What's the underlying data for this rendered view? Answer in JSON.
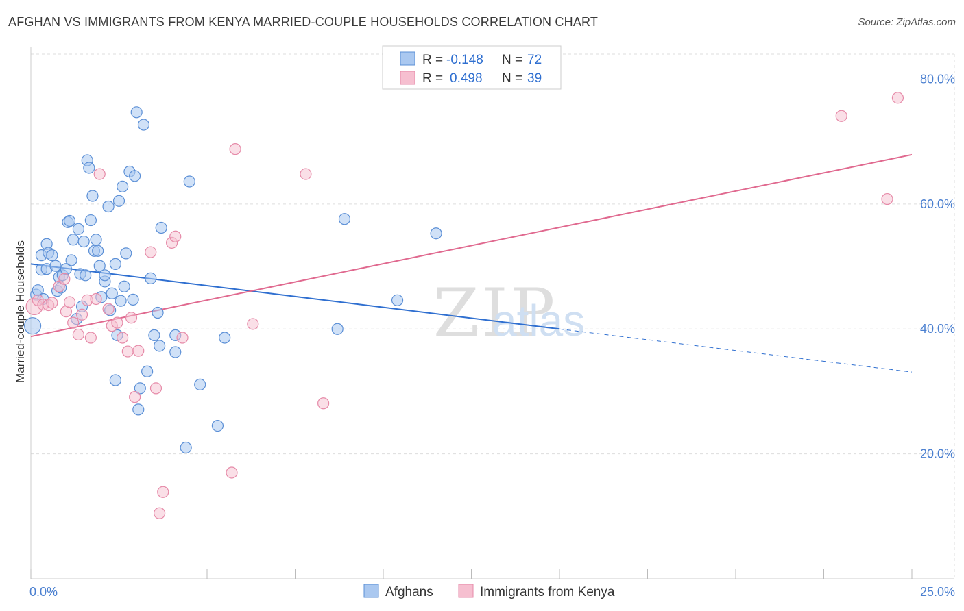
{
  "title": "AFGHAN VS IMMIGRANTS FROM KENYA MARRIED-COUPLE HOUSEHOLDS CORRELATION CHART",
  "source": "Source: ZipAtlas.com",
  "watermark": {
    "zip": "ZIP",
    "atlas": "atlas"
  },
  "colors": {
    "blue_fill": "#aac8f0",
    "blue_stroke": "#5b8fd6",
    "blue_line": "#2f6fd0",
    "pink_fill": "#f6bfd0",
    "pink_stroke": "#e68aa8",
    "pink_line": "#e0698f",
    "tick_text": "#4a7fd0",
    "grid": "#dddddd"
  },
  "legend": {
    "r_label": "R =",
    "n_label": "N =",
    "series": [
      {
        "r": "-0.148",
        "n": "72"
      },
      {
        "r": "0.498",
        "n": "39"
      }
    ]
  },
  "chart_data": {
    "type": "scatter",
    "title": "AFGHAN VS IMMIGRANTS FROM KENYA MARRIED-COUPLE HOUSEHOLDS CORRELATION CHART",
    "xlabel": "",
    "ylabel": "Married-couple Households",
    "xlim": [
      0,
      25
    ],
    "ylim": [
      0,
      84
    ],
    "x_tick_labels": [
      "0.0%",
      "25.0%"
    ],
    "y_ticks": [
      20,
      40,
      60,
      80
    ],
    "y_tick_labels": [
      "20.0%",
      "40.0%",
      "60.0%",
      "80.0%"
    ],
    "grid": true,
    "legend_position": "bottom",
    "series": [
      {
        "name": "Afghans",
        "trend": {
          "x0": 0,
          "y0": 50.4,
          "x1": 15,
          "y1": 40.0,
          "dashed_to_x": 25,
          "dashed_to_y": 33.1
        },
        "points": [
          [
            0.05,
            40.5
          ],
          [
            0.15,
            45.5
          ],
          [
            0.2,
            46.2
          ],
          [
            0.3,
            49.5
          ],
          [
            0.3,
            51.8
          ],
          [
            0.35,
            44.8
          ],
          [
            0.45,
            53.6
          ],
          [
            0.45,
            49.6
          ],
          [
            0.5,
            52.2
          ],
          [
            0.6,
            51.8
          ],
          [
            0.7,
            50.1
          ],
          [
            0.75,
            46.1
          ],
          [
            0.8,
            48.3
          ],
          [
            0.85,
            46.6
          ],
          [
            0.9,
            48.6
          ],
          [
            1.0,
            49.6
          ],
          [
            1.05,
            57.1
          ],
          [
            1.1,
            57.3
          ],
          [
            1.15,
            51.0
          ],
          [
            1.2,
            54.3
          ],
          [
            1.3,
            41.6
          ],
          [
            1.35,
            56.0
          ],
          [
            1.4,
            48.8
          ],
          [
            1.45,
            43.6
          ],
          [
            1.55,
            48.6
          ],
          [
            1.6,
            67.0
          ],
          [
            1.65,
            65.8
          ],
          [
            1.7,
            57.4
          ],
          [
            1.75,
            61.3
          ],
          [
            1.8,
            52.5
          ],
          [
            1.85,
            54.3
          ],
          [
            1.9,
            52.5
          ],
          [
            1.95,
            50.1
          ],
          [
            2.0,
            45.1
          ],
          [
            2.1,
            47.6
          ],
          [
            2.1,
            48.6
          ],
          [
            2.2,
            59.6
          ],
          [
            2.25,
            43.0
          ],
          [
            2.3,
            45.7
          ],
          [
            2.4,
            50.4
          ],
          [
            2.45,
            39.0
          ],
          [
            2.5,
            60.5
          ],
          [
            2.55,
            44.5
          ],
          [
            2.6,
            62.8
          ],
          [
            2.65,
            46.8
          ],
          [
            2.7,
            52.1
          ],
          [
            2.8,
            65.2
          ],
          [
            2.9,
            44.7
          ],
          [
            2.95,
            64.5
          ],
          [
            3.0,
            74.7
          ],
          [
            3.05,
            27.1
          ],
          [
            3.1,
            30.5
          ],
          [
            3.2,
            72.7
          ],
          [
            3.3,
            33.2
          ],
          [
            3.4,
            48.1
          ],
          [
            3.5,
            39.0
          ],
          [
            3.6,
            42.6
          ],
          [
            3.65,
            37.3
          ],
          [
            3.7,
            56.2
          ],
          [
            4.1,
            36.3
          ],
          [
            4.1,
            39.0
          ],
          [
            4.5,
            63.6
          ],
          [
            4.8,
            31.1
          ],
          [
            5.3,
            24.5
          ],
          [
            5.5,
            38.6
          ],
          [
            4.4,
            21.0
          ],
          [
            8.7,
            40.0
          ],
          [
            8.9,
            57.6
          ],
          [
            10.4,
            44.6
          ],
          [
            11.5,
            55.3
          ],
          [
            2.4,
            31.8
          ],
          [
            1.5,
            54.0
          ]
        ]
      },
      {
        "name": "Immigrants from Kenya",
        "trend": {
          "x0": 0,
          "y0": 38.8,
          "x1": 25,
          "y1": 67.9
        },
        "points": [
          [
            0.1,
            43.6
          ],
          [
            0.2,
            44.6
          ],
          [
            0.35,
            43.9
          ],
          [
            0.5,
            43.8
          ],
          [
            0.6,
            44.2
          ],
          [
            0.8,
            46.8
          ],
          [
            0.95,
            48.0
          ],
          [
            1.0,
            42.8
          ],
          [
            1.1,
            44.3
          ],
          [
            1.2,
            41.0
          ],
          [
            1.35,
            39.1
          ],
          [
            1.45,
            42.3
          ],
          [
            1.6,
            44.6
          ],
          [
            1.7,
            38.6
          ],
          [
            1.85,
            44.8
          ],
          [
            1.95,
            64.8
          ],
          [
            2.2,
            43.2
          ],
          [
            2.3,
            40.5
          ],
          [
            2.45,
            41.0
          ],
          [
            2.6,
            38.6
          ],
          [
            2.75,
            36.4
          ],
          [
            2.85,
            41.8
          ],
          [
            2.95,
            29.1
          ],
          [
            3.05,
            36.5
          ],
          [
            3.4,
            52.3
          ],
          [
            3.55,
            30.5
          ],
          [
            3.65,
            10.5
          ],
          [
            3.75,
            13.9
          ],
          [
            4.0,
            53.8
          ],
          [
            4.1,
            54.8
          ],
          [
            4.3,
            38.6
          ],
          [
            5.7,
            17.0
          ],
          [
            5.8,
            68.8
          ],
          [
            6.3,
            40.8
          ],
          [
            7.8,
            64.8
          ],
          [
            8.3,
            28.1
          ],
          [
            23.0,
            74.1
          ],
          [
            24.3,
            60.8
          ],
          [
            24.6,
            77.0
          ]
        ]
      }
    ]
  }
}
